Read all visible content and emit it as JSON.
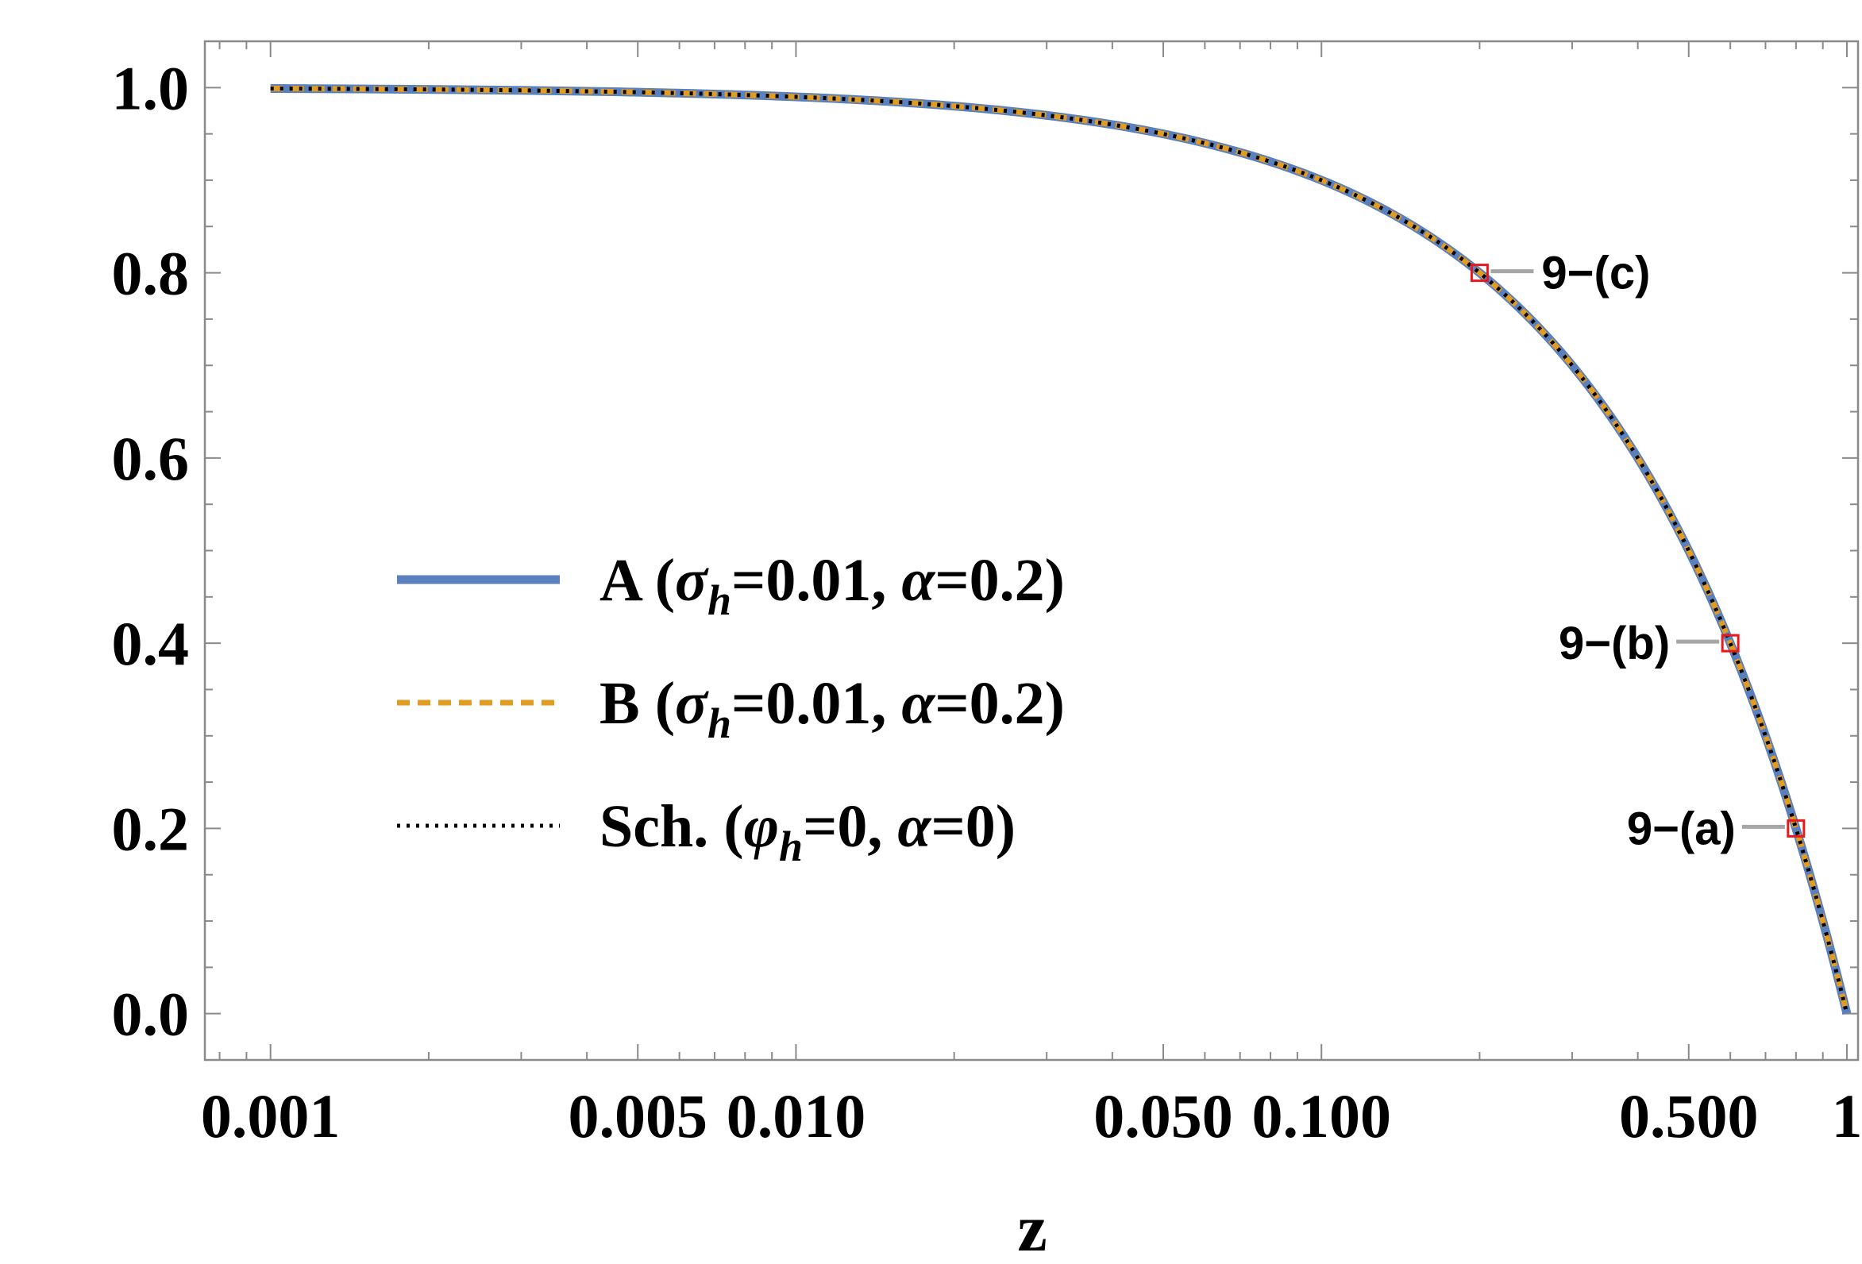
{
  "chart_data": {
    "type": "line",
    "title": "",
    "xlabel": "z",
    "ylabel": "",
    "x_scale": "log",
    "xlim": [
      0.00075,
      1.05
    ],
    "ylim": [
      -0.05,
      1.05
    ],
    "grid": false,
    "x_ticks": [
      {
        "value": 0.001,
        "label": "0.001"
      },
      {
        "value": 0.005,
        "label": "0.005"
      },
      {
        "value": 0.01,
        "label": "0.010"
      },
      {
        "value": 0.05,
        "label": "0.050"
      },
      {
        "value": 0.1,
        "label": "0.100"
      },
      {
        "value": 0.5,
        "label": "0.500"
      },
      {
        "value": 1,
        "label": "1"
      }
    ],
    "y_ticks": [
      {
        "value": 0.0,
        "label": "0.0"
      },
      {
        "value": 0.2,
        "label": "0.2"
      },
      {
        "value": 0.4,
        "label": "0.4"
      },
      {
        "value": 0.6,
        "label": "0.6"
      },
      {
        "value": 0.8,
        "label": "0.8"
      },
      {
        "value": 1.0,
        "label": "1.0"
      }
    ],
    "x": [
      0.001,
      0.002,
      0.005,
      0.01,
      0.02,
      0.05,
      0.1,
      0.15,
      0.2,
      0.3,
      0.4,
      0.5,
      0.6,
      0.7,
      0.8,
      0.9,
      1.0
    ],
    "series": [
      {
        "name": "A",
        "legend_parts": [
          "A (",
          "σ",
          "h",
          "=0.01, ",
          "α",
          "=0.2)"
        ],
        "color": "#5b80be",
        "style": "solid",
        "values": [
          0.999,
          0.998,
          0.995,
          0.99,
          0.98,
          0.95,
          0.9,
          0.85,
          0.8,
          0.7,
          0.6,
          0.5,
          0.4,
          0.3,
          0.2,
          0.1,
          0.0
        ]
      },
      {
        "name": "B",
        "legend_parts": [
          "B (",
          "σ",
          "h",
          "=0.01, ",
          "α",
          "=0.2)"
        ],
        "color": "#e19c24",
        "style": "dashed",
        "values": [
          0.999,
          0.998,
          0.995,
          0.99,
          0.98,
          0.95,
          0.9,
          0.85,
          0.8,
          0.7,
          0.6,
          0.5,
          0.4,
          0.3,
          0.2,
          0.1,
          0.0
        ]
      },
      {
        "name": "Sch.",
        "legend_parts": [
          "Sch. (",
          "φ",
          "h",
          "=0, ",
          "α",
          "=0)"
        ],
        "color": "#000000",
        "style": "dotted",
        "values": [
          0.999,
          0.998,
          0.995,
          0.99,
          0.98,
          0.95,
          0.9,
          0.85,
          0.8,
          0.7,
          0.6,
          0.5,
          0.4,
          0.3,
          0.2,
          0.1,
          0.0
        ]
      }
    ],
    "legend_position": "center-left",
    "annotations": [
      {
        "label": "9−(c)",
        "x": 0.2,
        "y": 0.8,
        "side": "right",
        "marker_color": "#e8191d",
        "leader_color": "#a6a6a6"
      },
      {
        "label": "9−(b)",
        "x": 0.6,
        "y": 0.4,
        "side": "left",
        "marker_color": "#e8191d",
        "leader_color": "#a6a6a6"
      },
      {
        "label": "9−(a)",
        "x": 0.8,
        "y": 0.2,
        "side": "left",
        "marker_color": "#e8191d",
        "leader_color": "#a6a6a6"
      }
    ]
  }
}
